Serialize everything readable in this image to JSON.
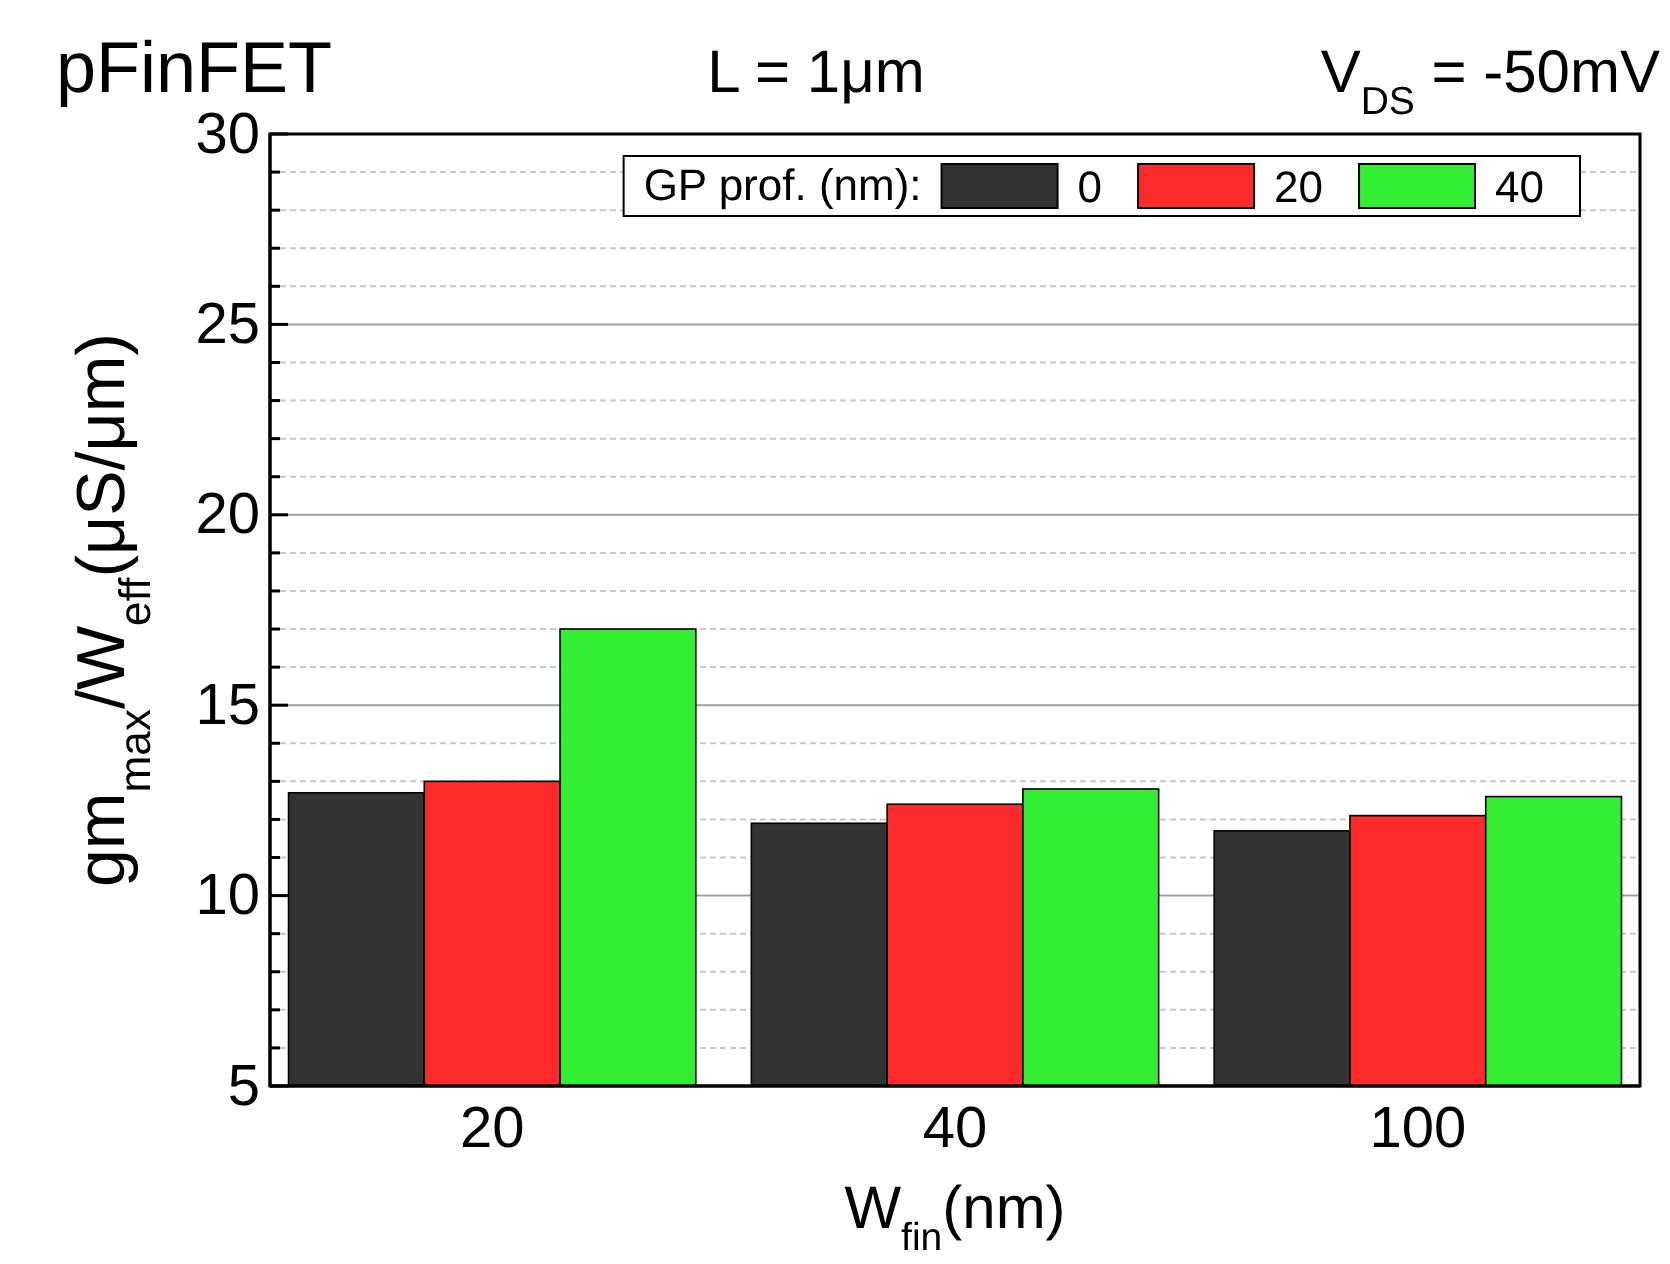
{
  "chart_data": {
    "type": "bar",
    "title": "pFinFET",
    "subtitle": "L = 1μm",
    "annotations": [
      "V$_{DS}$ = -50mV"
    ],
    "xlabel": "W$_{fin}$(nm)",
    "ylabel": "gm$_{max}$/W$_{eff}$(μS/μm)",
    "legend_title": "GP prof. (nm):",
    "categories": [
      "20",
      "40",
      "100"
    ],
    "series": [
      {
        "name": "0",
        "color": "#333333",
        "values": [
          12.7,
          11.9,
          11.7
        ]
      },
      {
        "name": "20",
        "color": "#ff2a2a",
        "values": [
          13.0,
          12.4,
          12.1
        ]
      },
      {
        "name": "40",
        "color": "#33ee33",
        "values": [
          17.0,
          12.8,
          12.6
        ]
      }
    ],
    "ylim": [
      5,
      30
    ],
    "yticks": [
      5,
      {
        "value": 6,
        "label": null
      },
      {
        "value": 7,
        "label": null
      },
      {
        "value": 8,
        "label": null
      },
      {
        "value": 9,
        "label": null
      },
      10,
      {
        "value": 11,
        "label": null
      },
      {
        "value": 12,
        "label": null
      },
      {
        "value": 13,
        "label": null
      },
      {
        "value": 14,
        "label": null
      },
      15,
      {
        "value": 16,
        "label": null
      },
      {
        "value": 17,
        "label": null
      },
      {
        "value": 18,
        "label": null
      },
      {
        "value": 19,
        "label": null
      },
      20,
      {
        "value": 21,
        "label": null
      },
      {
        "value": 22,
        "label": null
      },
      {
        "value": 23,
        "label": null
      },
      {
        "value": 24,
        "label": null
      },
      25,
      {
        "value": 26,
        "label": null
      },
      {
        "value": 27,
        "label": null
      },
      {
        "value": 28,
        "label": null
      },
      {
        "value": 29,
        "label": null
      },
      30
    ],
    "grid": "y",
    "legend": "top right"
  }
}
